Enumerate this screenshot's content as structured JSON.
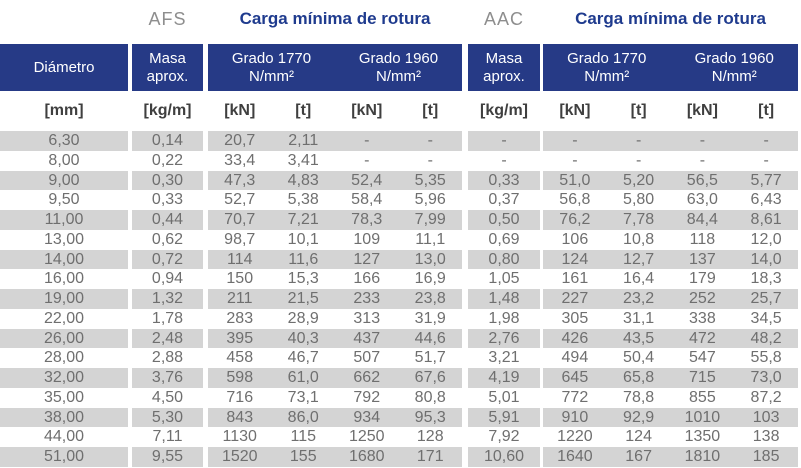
{
  "chart_data": {
    "type": "table",
    "title": "Carga mínima de rotura AFS / AAC",
    "top_headers": [
      "AFS",
      "Carga mínima de rotura",
      "AAC",
      "Carga mínima de rotura"
    ],
    "column_headers": [
      "Diámetro",
      "Masa aprox.",
      "Grado 1770 N/mm²",
      "Grado 1960 N/mm²",
      "Masa aprox.",
      "Grado 1770 N/mm²",
      "Grado 1960 N/mm²"
    ],
    "units": [
      "[mm]",
      "[kg/m]",
      "[kN]",
      "[t]",
      "[kN]",
      "[t]",
      "[kg/m]",
      "[kN]",
      "[t]",
      "[kN]",
      "[t]"
    ],
    "rows": [
      [
        "6,30",
        "0,14",
        "20,7",
        "2,11",
        "-",
        "-",
        "-",
        "-",
        "-",
        "-",
        "-"
      ],
      [
        "8,00",
        "0,22",
        "33,4",
        "3,41",
        "-",
        "-",
        "-",
        "-",
        "-",
        "-",
        "-"
      ],
      [
        "9,00",
        "0,30",
        "47,3",
        "4,83",
        "52,4",
        "5,35",
        "0,33",
        "51,0",
        "5,20",
        "56,5",
        "5,77"
      ],
      [
        "9,50",
        "0,33",
        "52,7",
        "5,38",
        "58,4",
        "5,96",
        "0,37",
        "56,8",
        "5,80",
        "63,0",
        "6,43"
      ],
      [
        "11,00",
        "0,44",
        "70,7",
        "7,21",
        "78,3",
        "7,99",
        "0,50",
        "76,2",
        "7,78",
        "84,4",
        "8,61"
      ],
      [
        "13,00",
        "0,62",
        "98,7",
        "10,1",
        "109",
        "11,1",
        "0,69",
        "106",
        "10,8",
        "118",
        "12,0"
      ],
      [
        "14,00",
        "0,72",
        "114",
        "11,6",
        "127",
        "13,0",
        "0,80",
        "124",
        "12,7",
        "137",
        "14,0"
      ],
      [
        "16,00",
        "0,94",
        "150",
        "15,3",
        "166",
        "16,9",
        "1,05",
        "161",
        "16,4",
        "179",
        "18,3"
      ],
      [
        "19,00",
        "1,32",
        "211",
        "21,5",
        "233",
        "23,8",
        "1,48",
        "227",
        "23,2",
        "252",
        "25,7"
      ],
      [
        "22,00",
        "1,78",
        "283",
        "28,9",
        "313",
        "31,9",
        "1,98",
        "305",
        "31,1",
        "338",
        "34,5"
      ],
      [
        "26,00",
        "2,48",
        "395",
        "40,3",
        "437",
        "44,6",
        "2,76",
        "426",
        "43,5",
        "472",
        "48,2"
      ],
      [
        "28,00",
        "2,88",
        "458",
        "46,7",
        "507",
        "51,7",
        "3,21",
        "494",
        "50,4",
        "547",
        "55,8"
      ],
      [
        "32,00",
        "3,76",
        "598",
        "61,0",
        "662",
        "67,6",
        "4,19",
        "645",
        "65,8",
        "715",
        "73,0"
      ],
      [
        "35,00",
        "4,50",
        "716",
        "73,1",
        "792",
        "80,8",
        "5,01",
        "772",
        "78,8",
        "855",
        "87,2"
      ],
      [
        "38,00",
        "5,30",
        "843",
        "86,0",
        "934",
        "95,3",
        "5,91",
        "910",
        "92,9",
        "1010",
        "103"
      ],
      [
        "44,00",
        "7,11",
        "1130",
        "115",
        "1250",
        "128",
        "7,92",
        "1220",
        "124",
        "1350",
        "138"
      ],
      [
        "51,00",
        "9,55",
        "1520",
        "155",
        "1680",
        "171",
        "10,60",
        "1640",
        "167",
        "1810",
        "185"
      ]
    ]
  },
  "colors": {
    "header_bg": "#263a86",
    "header_text": "#ffffff",
    "accent_title": "#1f3b8e",
    "group_label": "#8e8e8e",
    "unit_text": "#3f3f3f",
    "value_text": "#6f6f6f",
    "stripe": "#d4d4d4",
    "background": "#ffffff"
  }
}
